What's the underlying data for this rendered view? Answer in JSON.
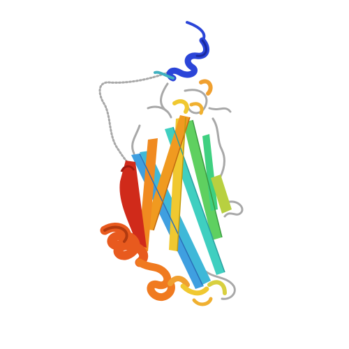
{
  "image": {
    "subject": "protein-ribbon-structure",
    "style": "rainbow-cartoon",
    "background_color": "#ffffff"
  },
  "palette": {
    "n_terminus": "#2b45d8",
    "blue": "#3f7fe0",
    "cyan": "#3fb8d8",
    "teal": "#3fcfb0",
    "green": "#5fd060",
    "yellow_green": "#b8d040",
    "yellow": "#f0c830",
    "orange": "#f08a20",
    "red_orange": "#e85a1e",
    "red": "#d02a1a",
    "loop_gray": "#a8a8a8"
  }
}
